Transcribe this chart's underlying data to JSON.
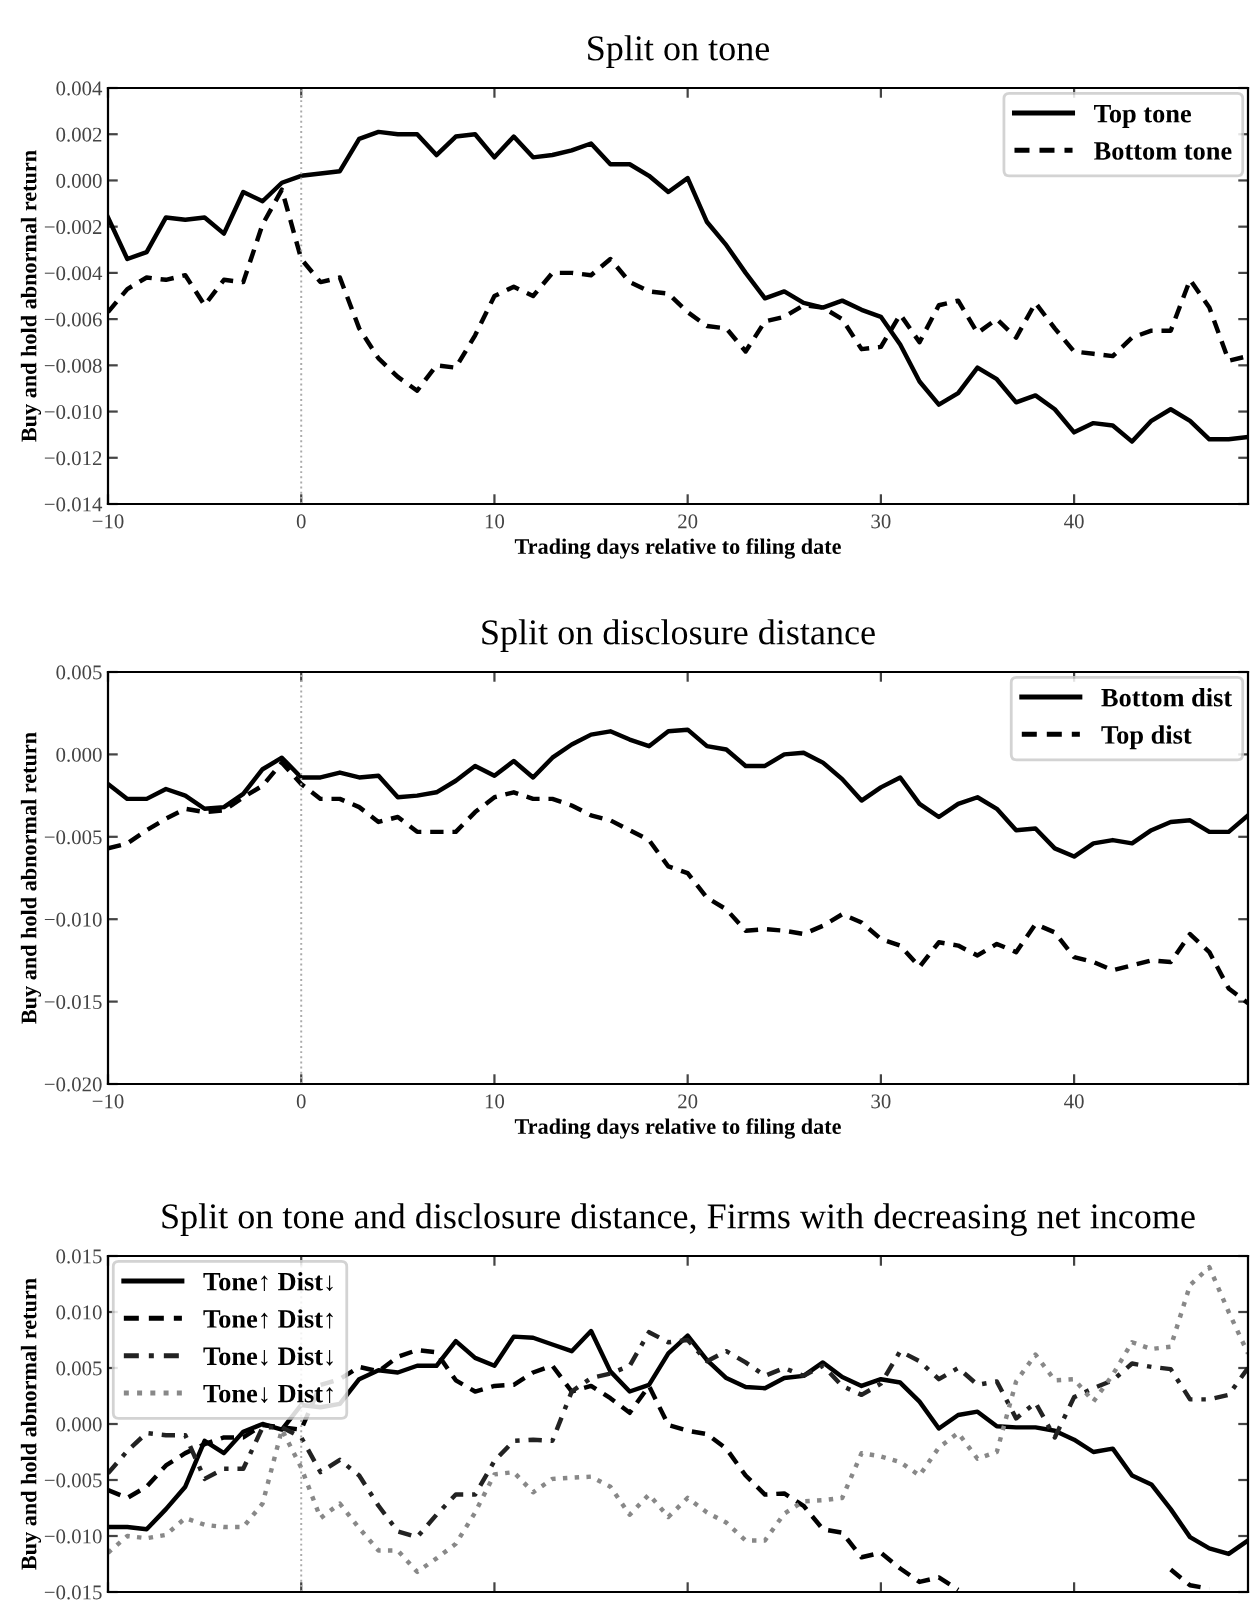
{
  "chart_data": [
    {
      "type": "line",
      "title": "Split on tone",
      "xlabel": "Trading days relative to filing date",
      "ylabel": "Buy and hold abnormal return",
      "legend": "top right",
      "grid": false,
      "x": [
        -10,
        -9,
        -8,
        -7,
        -6,
        -5,
        -4,
        -3,
        -2,
        -1,
        0,
        1,
        2,
        3,
        4,
        5,
        6,
        7,
        8,
        9,
        10,
        11,
        12,
        13,
        14,
        15,
        16,
        17,
        18,
        19,
        20,
        21,
        22,
        23,
        24,
        25,
        26,
        27,
        28,
        29,
        30,
        31,
        32,
        33,
        34,
        35,
        36,
        37,
        38,
        39,
        40,
        41,
        42,
        43,
        44,
        45,
        46,
        47,
        48,
        49
      ],
      "xlim": [
        -10,
        49
      ],
      "xticks": [
        {
          "value": -10,
          "label": "−10"
        },
        0,
        10,
        20,
        30,
        40
      ],
      "ylim": [
        -0.014,
        0.004
      ],
      "yticks": [
        {
          "value": -0.014,
          "label": "−0.014"
        },
        {
          "value": -0.012,
          "label": "−0.012"
        },
        {
          "value": -0.01,
          "label": "−0.010"
        },
        {
          "value": -0.008,
          "label": "−0.008"
        },
        {
          "value": -0.006,
          "label": "−0.006"
        },
        {
          "value": -0.004,
          "label": "−0.004"
        },
        {
          "value": -0.002,
          "label": "−0.002"
        },
        {
          "value": 0,
          "label": "0.000"
        },
        {
          "value": 0.002,
          "label": "0.002"
        },
        {
          "value": 0.004,
          "label": "0.004"
        }
      ],
      "ref_lines": [
        {
          "axis": "x",
          "value": 0,
          "color": "#aaaaaa",
          "line_style": "dotted"
        }
      ],
      "series": [
        {
          "name": "Top tone",
          "color": "#000000",
          "line_style": "solid",
          "values": [
            -0.0016,
            -0.0034,
            -0.0031,
            -0.0016,
            -0.0017,
            -0.0016,
            -0.0023,
            -0.0005,
            -0.0009,
            -0.0001,
            0.0002,
            0.0003,
            0.0004,
            0.0018,
            0.0021,
            0.002,
            0.002,
            0.0011,
            0.0019,
            0.002,
            0.001,
            0.0019,
            0.001,
            0.0011,
            0.0013,
            0.0016,
            0.0007,
            0.0007,
            0.0002,
            -0.0005,
            0.0001,
            -0.0018,
            -0.0028,
            -0.004,
            -0.0051,
            -0.0048,
            -0.0053,
            -0.0055,
            -0.0052,
            -0.0056,
            -0.0059,
            -0.0071,
            -0.0087,
            -0.0097,
            -0.0092,
            -0.0081,
            -0.0086,
            -0.0096,
            -0.0093,
            -0.0099,
            -0.0109,
            -0.0105,
            -0.0106,
            -0.0113,
            -0.0104,
            -0.0099,
            -0.0104,
            -0.0112,
            -0.0112,
            -0.0111
          ]
        },
        {
          "name": "Bottom tone",
          "color": "#000000",
          "line_style": "dashed",
          "values": [
            -0.0057,
            -0.0047,
            -0.0042,
            -0.0043,
            -0.0041,
            -0.0054,
            -0.0043,
            -0.0044,
            -0.0019,
            -0.0004,
            -0.0034,
            -0.0044,
            -0.0042,
            -0.0064,
            -0.0077,
            -0.0085,
            -0.0091,
            -0.008,
            -0.0081,
            -0.0067,
            -0.005,
            -0.0046,
            -0.005,
            -0.004,
            -0.004,
            -0.0041,
            -0.0034,
            -0.0044,
            -0.0048,
            -0.0049,
            -0.0057,
            -0.0063,
            -0.0064,
            -0.0074,
            -0.0061,
            -0.0059,
            -0.0054,
            -0.0055,
            -0.006,
            -0.0073,
            -0.0072,
            -0.0058,
            -0.007,
            -0.0054,
            -0.0052,
            -0.0066,
            -0.006,
            -0.0068,
            -0.0053,
            -0.0064,
            -0.0074,
            -0.0075,
            -0.0076,
            -0.0068,
            -0.0065,
            -0.0065,
            -0.0043,
            -0.0055,
            -0.0078,
            -0.0076
          ]
        }
      ]
    },
    {
      "type": "line",
      "title": "Split on disclosure distance",
      "xlabel": "Trading days relative to filing date",
      "ylabel": "Buy and hold abnormal return",
      "legend": "top right",
      "grid": false,
      "x": [
        -10,
        -9,
        -8,
        -7,
        -6,
        -5,
        -4,
        -3,
        -2,
        -1,
        0,
        1,
        2,
        3,
        4,
        5,
        6,
        7,
        8,
        9,
        10,
        11,
        12,
        13,
        14,
        15,
        16,
        17,
        18,
        19,
        20,
        21,
        22,
        23,
        24,
        25,
        26,
        27,
        28,
        29,
        30,
        31,
        32,
        33,
        34,
        35,
        36,
        37,
        38,
        39,
        40,
        41,
        42,
        43,
        44,
        45,
        46,
        47,
        48,
        49
      ],
      "xlim": [
        -10,
        49
      ],
      "xticks": [
        {
          "value": -10,
          "label": "−10"
        },
        0,
        10,
        20,
        30,
        40
      ],
      "ylim": [
        -0.02,
        0.005
      ],
      "yticks": [
        {
          "value": -0.02,
          "label": "−0.020"
        },
        {
          "value": -0.015,
          "label": "−0.015"
        },
        {
          "value": -0.01,
          "label": "−0.010"
        },
        {
          "value": -0.005,
          "label": "−0.005"
        },
        {
          "value": 0,
          "label": "0.000"
        },
        {
          "value": 0.005,
          "label": "0.005"
        }
      ],
      "ref_lines": [
        {
          "axis": "x",
          "value": 0,
          "color": "#aaaaaa",
          "line_style": "dotted"
        }
      ],
      "series": [
        {
          "name": "Bottom dist",
          "color": "#000000",
          "line_style": "solid",
          "values": [
            -0.0018,
            -0.0027,
            -0.0027,
            -0.0021,
            -0.0025,
            -0.0033,
            -0.0032,
            -0.0024,
            -0.0009,
            -0.0002,
            -0.0014,
            -0.0014,
            -0.0011,
            -0.0014,
            -0.0013,
            -0.0026,
            -0.0025,
            -0.0023,
            -0.0016,
            -0.0007,
            -0.0013,
            -0.0004,
            -0.0014,
            -0.0002,
            0.0006,
            0.0012,
            0.0014,
            0.0009,
            0.0005,
            0.0014,
            0.0015,
            0.0005,
            0.0003,
            -0.0007,
            -0.0007,
            0.0,
            0.0001,
            -0.0005,
            -0.0015,
            -0.0028,
            -0.002,
            -0.0014,
            -0.003,
            -0.0038,
            -0.003,
            -0.0026,
            -0.0033,
            -0.0046,
            -0.0045,
            -0.0057,
            -0.0062,
            -0.0054,
            -0.0052,
            -0.0054,
            -0.0046,
            -0.0041,
            -0.004,
            -0.0047,
            -0.0047,
            -0.0037
          ]
        },
        {
          "name": "Top dist",
          "color": "#000000",
          "line_style": "dashed",
          "values": [
            -0.0057,
            -0.0054,
            -0.0046,
            -0.0039,
            -0.0033,
            -0.0035,
            -0.0034,
            -0.0026,
            -0.0019,
            -0.0005,
            -0.0018,
            -0.0027,
            -0.0027,
            -0.0032,
            -0.0041,
            -0.0038,
            -0.0047,
            -0.0047,
            -0.0047,
            -0.0035,
            -0.0026,
            -0.0023,
            -0.0027,
            -0.0027,
            -0.0031,
            -0.0037,
            -0.004,
            -0.0046,
            -0.0052,
            -0.0068,
            -0.0072,
            -0.0087,
            -0.0094,
            -0.0107,
            -0.0106,
            -0.0107,
            -0.0109,
            -0.0104,
            -0.0097,
            -0.0102,
            -0.0112,
            -0.0116,
            -0.0129,
            -0.0114,
            -0.0116,
            -0.0122,
            -0.0115,
            -0.012,
            -0.0103,
            -0.0108,
            -0.0123,
            -0.0126,
            -0.0131,
            -0.0128,
            -0.0125,
            -0.0126,
            -0.0109,
            -0.012,
            -0.0142,
            -0.0151
          ]
        }
      ]
    },
    {
      "type": "line",
      "title": "Split on tone and disclosure distance, Firms with decreasing net income",
      "ylabel": "Buy and hold abnormal return",
      "legend": "top left",
      "grid": false,
      "tick_labels": "y",
      "x": [
        -10,
        -9,
        -8,
        -7,
        -6,
        -5,
        -4,
        -3,
        -2,
        -1,
        0,
        1,
        2,
        3,
        4,
        5,
        6,
        7,
        8,
        9,
        10,
        11,
        12,
        13,
        14,
        15,
        16,
        17,
        18,
        19,
        20,
        21,
        22,
        23,
        24,
        25,
        26,
        27,
        28,
        29,
        30,
        31,
        32,
        33,
        34,
        35,
        36,
        37,
        38,
        39,
        40,
        41,
        42,
        43,
        44,
        45,
        46,
        47,
        48,
        49
      ],
      "xlim": [
        -10,
        49
      ],
      "xticks": [
        {
          "value": -10,
          "label": null
        },
        {
          "value": 0,
          "label": null
        },
        {
          "value": 10,
          "label": null
        },
        {
          "value": 20,
          "label": null
        },
        {
          "value": 30,
          "label": null
        },
        {
          "value": 40,
          "label": null
        }
      ],
      "ylim": [
        -0.015,
        0.015
      ],
      "yticks": [
        {
          "value": -0.015,
          "label": "−0.015"
        },
        {
          "value": -0.01,
          "label": "−0.010"
        },
        {
          "value": -0.005,
          "label": "−0.005"
        },
        {
          "value": 0,
          "label": "0.000"
        },
        {
          "value": 0.005,
          "label": "0.005"
        },
        {
          "value": 0.01,
          "label": "0.010"
        },
        {
          "value": 0.015,
          "label": "0.015"
        }
      ],
      "ref_lines": [
        {
          "axis": "x",
          "value": 0,
          "color": "#aaaaaa",
          "line_style": "dotted"
        }
      ],
      "series": [
        {
          "name": "Tone↑ Dist↓",
          "color": "#000000",
          "line_style": "solid",
          "values": [
            -0.0092,
            -0.0092,
            -0.0094,
            -0.0076,
            -0.0056,
            -0.0015,
            -0.0026,
            -0.0007,
            0.0,
            -0.0005,
            0.0017,
            0.0015,
            0.0018,
            0.004,
            0.0048,
            0.0046,
            0.0052,
            0.0052,
            0.0074,
            0.0059,
            0.0052,
            0.0078,
            0.0077,
            0.0071,
            0.0065,
            0.0083,
            0.0047,
            0.0029,
            0.0035,
            0.0063,
            0.0079,
            0.0057,
            0.0041,
            0.0033,
            0.0032,
            0.0041,
            0.0043,
            0.0055,
            0.0042,
            0.0034,
            0.004,
            0.0037,
            0.002,
            -0.0004,
            0.0008,
            0.0011,
            -0.0002,
            -0.0003,
            -0.0003,
            -0.0006,
            -0.0014,
            -0.0025,
            -0.0022,
            -0.0046,
            -0.0054,
            -0.0076,
            -0.0101,
            -0.0111,
            -0.0116,
            -0.0104
          ]
        },
        {
          "name": "Tone↑ Dist↑",
          "color": "#000000",
          "line_style": "dashed",
          "values": [
            -0.0059,
            -0.0066,
            -0.0056,
            -0.0037,
            -0.0026,
            -0.0018,
            -0.0012,
            -0.0012,
            -0.0001,
            -0.0003,
            -0.0005,
            0.0035,
            0.004,
            0.0051,
            0.0047,
            0.006,
            0.0066,
            0.0064,
            0.0039,
            0.0029,
            0.0034,
            0.0035,
            0.0046,
            0.0052,
            0.0029,
            0.0034,
            0.0023,
            0.001,
            0.0034,
            -0.0001,
            -0.0006,
            -0.0009,
            -0.0022,
            -0.0046,
            -0.0063,
            -0.0062,
            -0.0073,
            -0.0094,
            -0.0097,
            -0.0119,
            -0.0115,
            -0.0129,
            -0.0141,
            -0.0137,
            -0.0148,
            null,
            null,
            null,
            null,
            null,
            null,
            null,
            null,
            null,
            null,
            -0.013,
            -0.0144,
            -0.0147,
            null,
            null
          ]
        },
        {
          "name": "Tone↓ Dist↓",
          "color": "#222222",
          "line_style": "dashdot",
          "values": [
            -0.0044,
            -0.0024,
            -0.0008,
            -0.001,
            -0.001,
            -0.0049,
            -0.004,
            -0.004,
            -0.0003,
            -0.0003,
            -0.0012,
            -0.0043,
            -0.0032,
            -0.0046,
            -0.0073,
            -0.0096,
            -0.0101,
            -0.0081,
            -0.0063,
            -0.0063,
            -0.0033,
            -0.0015,
            -0.0014,
            -0.0015,
            0.0029,
            0.0041,
            0.0045,
            0.0052,
            0.0082,
            0.0073,
            0.0075,
            0.0056,
            0.0065,
            0.0055,
            0.0043,
            0.005,
            0.0043,
            0.0052,
            0.0034,
            0.0026,
            0.0036,
            0.0065,
            0.0056,
            0.004,
            0.005,
            0.0035,
            0.0038,
            0.0005,
            0.0019,
            -0.0012,
            0.0024,
            0.0032,
            0.0039,
            0.0054,
            0.0051,
            0.0049,
            0.0022,
            0.0022,
            0.0026,
            0.005
          ]
        },
        {
          "name": "Tone↓ Dist↑",
          "color": "#888888",
          "line_style": "dotted",
          "values": [
            -0.0115,
            -0.01,
            -0.0102,
            -0.0099,
            -0.0084,
            -0.009,
            -0.0092,
            -0.0092,
            -0.0071,
            -0.0005,
            -0.0039,
            -0.0084,
            -0.0071,
            -0.0093,
            -0.0113,
            -0.0113,
            -0.0132,
            -0.012,
            -0.0107,
            -0.0079,
            -0.0045,
            -0.0043,
            -0.0061,
            -0.0049,
            -0.0048,
            -0.0047,
            -0.0056,
            -0.0081,
            -0.0063,
            -0.0083,
            -0.0066,
            -0.0079,
            -0.0088,
            -0.0104,
            -0.0104,
            -0.008,
            -0.0069,
            -0.0068,
            -0.0066,
            -0.0026,
            -0.0029,
            -0.0034,
            -0.0046,
            -0.0021,
            -0.0008,
            -0.0031,
            -0.0025,
            0.0038,
            0.0062,
            0.0039,
            0.004,
            0.002,
            0.0044,
            0.0073,
            0.0067,
            0.0069,
            0.0124,
            0.014,
            0.01,
            0.0063
          ]
        }
      ]
    }
  ]
}
